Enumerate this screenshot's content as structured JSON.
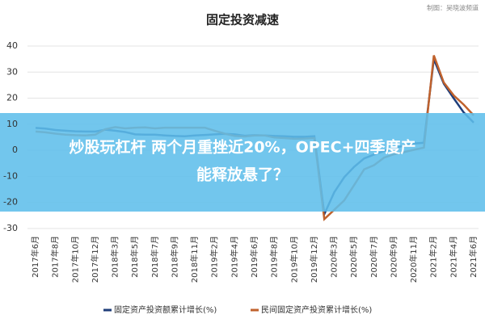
{
  "chart_data": {
    "type": "line",
    "title": "固定投资减速",
    "watermark": "制图：吴晓波频道",
    "categories": [
      "2017年6月",
      null,
      "2017年8月",
      null,
      "2017年10月",
      null,
      "2017年12月",
      null,
      "2018年3月",
      null,
      "2018年5月",
      null,
      "2018年7月",
      null,
      "2018年9月",
      null,
      "2018年11月",
      null,
      "2019年2月",
      null,
      "2019年4月",
      null,
      "2019年6月",
      null,
      "2019年8月",
      null,
      "2019年10月",
      null,
      "2019年12月",
      null,
      "2020年3月",
      null,
      "2020年5月",
      null,
      "2020年7月",
      null,
      "2020年9月",
      null,
      "2020年11月",
      null,
      "2021年2月",
      null,
      "2021年4月",
      null,
      "2021年6月"
    ],
    "series": [
      {
        "name": "固定资产投资额累计增长(%)",
        "color": "#1f3e7a",
        "values": [
          8.6,
          8.3,
          7.8,
          7.5,
          7.3,
          7.2,
          7.2,
          7.9,
          7.5,
          7.0,
          6.1,
          6.0,
          6.0,
          5.7,
          5.5,
          5.4,
          5.7,
          5.9,
          6.1,
          6.3,
          6.1,
          5.6,
          5.8,
          5.7,
          5.5,
          5.4,
          5.2,
          5.2,
          5.4,
          -24.5,
          -16.1,
          -10.3,
          -6.3,
          -3.1,
          -1.6,
          -0.3,
          0.8,
          1.8,
          2.6,
          2.9,
          35.0,
          25.6,
          19.9,
          14.5,
          10.6
        ]
      },
      {
        "name": "民间固定资产投资累计增长(%)",
        "color": "#c0622d",
        "values": [
          7.2,
          6.9,
          6.4,
          6.0,
          5.8,
          5.7,
          6.0,
          8.1,
          8.9,
          8.4,
          8.7,
          8.8,
          8.4,
          8.7,
          8.7,
          8.7,
          8.7,
          8.7,
          7.5,
          6.4,
          5.5,
          5.3,
          5.7,
          5.7,
          4.9,
          4.7,
          4.4,
          4.5,
          4.7,
          -26.4,
          -22.8,
          -19.2,
          -13.3,
          -7.3,
          -5.7,
          -2.8,
          -1.5,
          -0.7,
          0.2,
          1.0,
          36.4,
          26.0,
          21.0,
          17.5,
          13.4
        ]
      }
    ],
    "ylim": [
      -30,
      40
    ],
    "yticks": [
      -30,
      -20,
      -10,
      0,
      10,
      20,
      30,
      40
    ],
    "grid": true
  },
  "overlay": {
    "lines": [
      "炒股玩杠杆 两个月重挫近20%，OPEC+四季度产",
      "能释放悬了？"
    ]
  }
}
